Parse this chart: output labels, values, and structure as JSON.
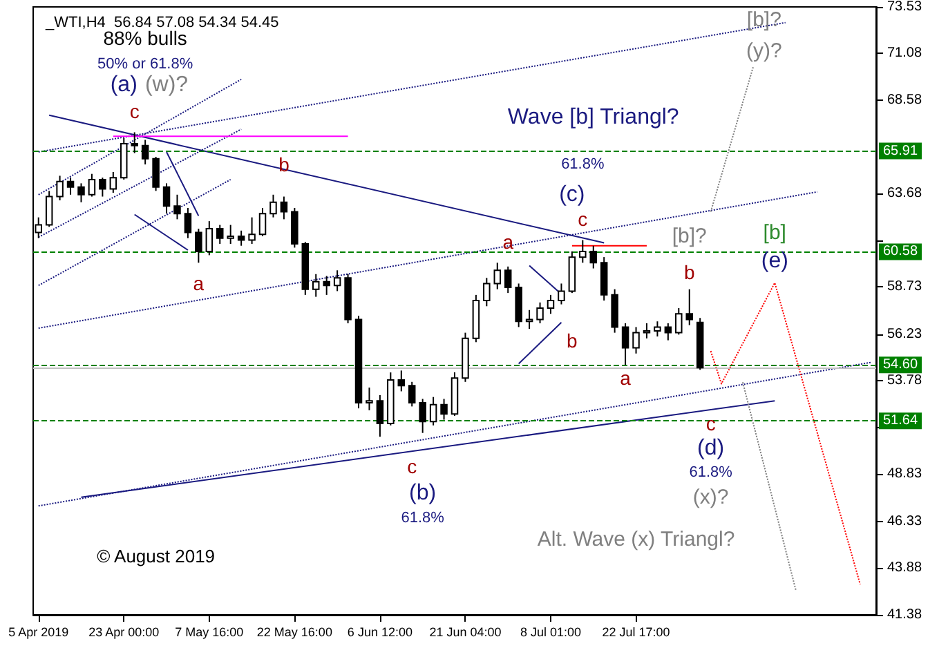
{
  "chart_data": {
    "type": "candlestick",
    "title": "_WTI,H4  56.84 57.08 54.34 54.45",
    "color": "#000000",
    "marker": "none",
    "categories": [
      "5 Apr 2019",
      null,
      null,
      null,
      null,
      null,
      null,
      null,
      "23 Apr 00:00",
      null,
      null,
      null,
      null,
      null,
      null,
      null,
      "7 May 16:00",
      null,
      null,
      null,
      null,
      null,
      null,
      null,
      "22 May 16:00",
      null,
      null,
      null,
      null,
      null,
      null,
      null,
      "6 Jun 12:00",
      null,
      null,
      null,
      null,
      null,
      null,
      null,
      "21 Jun 04:00",
      null,
      null,
      null,
      null,
      null,
      null,
      null,
      "8 Jul 01:00",
      null,
      null,
      null,
      null,
      null,
      null,
      null,
      "22 Jul 17:00",
      null,
      null,
      null,
      null,
      null,
      null,
      null,
      null,
      null,
      null,
      null,
      null,
      null,
      null,
      null,
      null,
      null,
      null,
      null,
      null,
      null,
      null
    ],
    "ylim": [
      41.38,
      73.53
    ],
    "yticks": [
      41.38,
      43.88,
      46.33,
      48.83,
      {
        "value": 51.28,
        "label": null
      },
      53.78,
      56.23,
      58.73,
      {
        "value": 61.18,
        "label": null
      },
      63.68,
      68.58,
      71.08,
      73.53
    ],
    "ohlc": [
      [
        61.6,
        62.4,
        61.3,
        62.0
      ],
      [
        62.0,
        63.8,
        61.9,
        63.5
      ],
      [
        63.5,
        64.6,
        63.3,
        64.3
      ],
      [
        64.3,
        64.5,
        63.6,
        64.0
      ],
      [
        64.0,
        64.2,
        63.2,
        63.6
      ],
      [
        63.6,
        64.7,
        63.5,
        64.4
      ],
      [
        64.4,
        64.5,
        63.5,
        63.9
      ],
      [
        63.9,
        64.8,
        63.7,
        64.5
      ],
      [
        64.5,
        66.6,
        64.4,
        66.3
      ],
      [
        66.3,
        66.9,
        65.8,
        66.2
      ],
      [
        66.2,
        66.5,
        65.2,
        65.5
      ],
      [
        65.5,
        65.6,
        63.8,
        64.0
      ],
      [
        64.0,
        64.2,
        62.6,
        63.0
      ],
      [
        63.0,
        63.6,
        62.3,
        62.6
      ],
      [
        62.6,
        62.9,
        61.3,
        61.6
      ],
      [
        61.6,
        61.8,
        60.0,
        60.6
      ],
      [
        60.6,
        62.2,
        60.4,
        61.8
      ],
      [
        61.8,
        62.0,
        61.0,
        61.3
      ],
      [
        61.3,
        62.0,
        61.0,
        61.4
      ],
      [
        61.4,
        61.7,
        60.9,
        61.2
      ],
      [
        61.2,
        62.4,
        61.0,
        61.5
      ],
      [
        61.5,
        62.9,
        61.4,
        62.6
      ],
      [
        62.6,
        63.6,
        62.4,
        63.2
      ],
      [
        63.2,
        63.5,
        62.3,
        62.7
      ],
      [
        62.7,
        62.9,
        60.8,
        61.0
      ],
      [
        61.0,
        61.1,
        58.3,
        58.6
      ],
      [
        58.6,
        59.4,
        58.2,
        59.0
      ],
      [
        59.0,
        59.3,
        58.3,
        58.8
      ],
      [
        58.8,
        59.6,
        58.5,
        59.2
      ],
      [
        59.2,
        59.4,
        56.8,
        57.0
      ],
      [
        57.0,
        57.2,
        52.3,
        52.6
      ],
      [
        52.6,
        53.4,
        52.2,
        52.7
      ],
      [
        52.7,
        53.0,
        50.8,
        51.5
      ],
      [
        51.5,
        54.2,
        51.4,
        53.8
      ],
      [
        53.8,
        54.3,
        53.2,
        53.5
      ],
      [
        53.5,
        53.7,
        52.4,
        52.6
      ],
      [
        52.6,
        52.8,
        51.0,
        51.6
      ],
      [
        51.6,
        52.9,
        51.4,
        52.5
      ],
      [
        52.5,
        52.8,
        51.7,
        52.0
      ],
      [
        52.0,
        54.2,
        51.9,
        53.9
      ],
      [
        53.9,
        56.3,
        53.7,
        56.0
      ],
      [
        56.0,
        58.3,
        55.8,
        58.0
      ],
      [
        58.0,
        59.2,
        57.7,
        58.9
      ],
      [
        58.9,
        60.0,
        58.6,
        59.6
      ],
      [
        59.6,
        59.8,
        58.4,
        58.7
      ],
      [
        58.7,
        58.9,
        56.6,
        56.9
      ],
      [
        56.9,
        57.5,
        56.5,
        57.0
      ],
      [
        57.0,
        57.9,
        56.8,
        57.6
      ],
      [
        57.6,
        58.3,
        57.3,
        58.0
      ],
      [
        58.0,
        58.9,
        57.8,
        58.5
      ],
      [
        58.5,
        60.6,
        58.4,
        60.3
      ],
      [
        60.3,
        61.2,
        60.0,
        60.6
      ],
      [
        60.6,
        60.9,
        59.7,
        60.0
      ],
      [
        60.0,
        60.3,
        58.0,
        58.3
      ],
      [
        58.3,
        58.6,
        56.3,
        56.6
      ],
      [
        56.6,
        56.8,
        54.6,
        55.5
      ],
      [
        55.5,
        56.6,
        55.2,
        56.3
      ],
      [
        56.3,
        56.8,
        56.0,
        56.4
      ],
      [
        56.4,
        56.9,
        56.1,
        56.6
      ],
      [
        56.6,
        56.8,
        55.9,
        56.3
      ],
      [
        56.3,
        57.6,
        56.2,
        57.3
      ],
      [
        57.3,
        58.6,
        56.7,
        57.0
      ],
      [
        56.84,
        57.08,
        54.34,
        54.45
      ],
      null,
      null,
      null,
      null,
      null,
      null,
      null,
      null,
      null,
      null,
      null,
      null,
      null,
      null,
      null,
      null
    ],
    "series": [
      {
        "type": "line",
        "color": "#1a1a80",
        "line_style": "solid",
        "values": [
          null,
          67.8,
          null,
          null,
          null,
          null,
          null,
          null,
          null,
          null,
          null,
          null,
          null,
          null,
          null,
          null,
          null,
          null,
          null,
          null,
          null,
          null,
          null,
          null,
          null,
          null,
          null,
          null,
          null,
          null,
          null,
          null,
          null,
          null,
          null,
          null,
          null,
          null,
          null,
          null,
          null,
          null,
          null,
          null,
          null,
          null,
          null,
          null,
          null,
          null,
          null,
          null,
          null,
          61.05,
          null,
          null,
          null,
          null,
          null,
          null,
          null,
          null,
          null,
          null,
          null,
          null,
          null,
          null,
          null,
          null,
          null,
          null,
          null,
          null,
          null,
          null,
          null,
          null,
          null
        ]
      },
      {
        "type": "line",
        "color": "#1a1a80",
        "line_style": "solid",
        "values": [
          null,
          null,
          null,
          null,
          47.6,
          null,
          null,
          null,
          null,
          null,
          null,
          null,
          null,
          null,
          null,
          null,
          null,
          null,
          null,
          null,
          null,
          null,
          null,
          null,
          null,
          null,
          null,
          null,
          null,
          null,
          null,
          null,
          null,
          null,
          null,
          null,
          null,
          null,
          null,
          null,
          null,
          null,
          null,
          null,
          null,
          null,
          null,
          null,
          null,
          null,
          null,
          null,
          null,
          null,
          null,
          null,
          null,
          null,
          null,
          null,
          null,
          null,
          null,
          null,
          null,
          null,
          null,
          null,
          null,
          52.7,
          null,
          null,
          null,
          null,
          null,
          null,
          null,
          null,
          null
        ]
      },
      {
        "type": "line",
        "color": "#1a1a80",
        "line_style": "dotted",
        "values": [
          47.14,
          null,
          null,
          null,
          null,
          null,
          null,
          null,
          null,
          null,
          null,
          null,
          null,
          null,
          null,
          null,
          null,
          null,
          null,
          null,
          null,
          null,
          null,
          null,
          null,
          null,
          null,
          null,
          null,
          null,
          null,
          null,
          null,
          null,
          null,
          null,
          null,
          null,
          null,
          null,
          null,
          null,
          null,
          null,
          null,
          null,
          null,
          null,
          null,
          null,
          null,
          null,
          null,
          null,
          null,
          null,
          null,
          null,
          null,
          null,
          null,
          null,
          null,
          null,
          null,
          null,
          null,
          null,
          null,
          null,
          null,
          null,
          null,
          null,
          null,
          null,
          null,
          null,
          54.73
        ]
      },
      {
        "type": "line",
        "color": "#1a1a80",
        "line_style": "dotted",
        "values": [
          56.54,
          null,
          null,
          null,
          null,
          null,
          null,
          null,
          null,
          null,
          null,
          null,
          null,
          null,
          null,
          null,
          null,
          null,
          null,
          null,
          null,
          null,
          null,
          null,
          null,
          null,
          null,
          null,
          null,
          null,
          null,
          null,
          null,
          null,
          null,
          null,
          null,
          null,
          null,
          null,
          null,
          null,
          null,
          null,
          null,
          null,
          null,
          null,
          null,
          null,
          null,
          null,
          null,
          null,
          null,
          null,
          null,
          null,
          null,
          null,
          null,
          null,
          null,
          null,
          null,
          null,
          null,
          null,
          null,
          null,
          null,
          null,
          null,
          63.75,
          null,
          null,
          null,
          null,
          null
        ]
      },
      {
        "type": "line",
        "color": "#1a1a80",
        "line_style": "dotted",
        "values": [
          65.86,
          null,
          null,
          null,
          null,
          null,
          null,
          null,
          null,
          null,
          null,
          null,
          null,
          null,
          null,
          null,
          null,
          null,
          null,
          null,
          null,
          null,
          null,
          null,
          null,
          null,
          null,
          null,
          null,
          null,
          null,
          null,
          null,
          null,
          null,
          null,
          null,
          null,
          null,
          null,
          null,
          null,
          null,
          null,
          null,
          null,
          null,
          null,
          null,
          null,
          null,
          null,
          null,
          null,
          null,
          null,
          null,
          null,
          null,
          null,
          null,
          null,
          null,
          null,
          null,
          null,
          null,
          null,
          null,
          null,
          72.7,
          null,
          null,
          null,
          null,
          null,
          null,
          null,
          null
        ]
      },
      {
        "type": "line",
        "color": "#1a1a80",
        "line_style": "dotted",
        "values": [
          63.6,
          null,
          null,
          null,
          null,
          null,
          null,
          null,
          null,
          null,
          null,
          null,
          null,
          null,
          null,
          null,
          null,
          null,
          null,
          69.7,
          null,
          null,
          null,
          null,
          null,
          null,
          null,
          null,
          null,
          null,
          null,
          null,
          null,
          null,
          null,
          null,
          null,
          null,
          null,
          null,
          null,
          null,
          null,
          null,
          null,
          null,
          null,
          null,
          null,
          null,
          null,
          null,
          null,
          null,
          null,
          null,
          null,
          null,
          null,
          null,
          null,
          null,
          null,
          null,
          null,
          null,
          null,
          null,
          null,
          null,
          null,
          null,
          null,
          null,
          null,
          null,
          null,
          null,
          null
        ]
      },
      {
        "type": "line",
        "color": "#1a1a80",
        "line_style": "dotted",
        "values": [
          61.35,
          null,
          null,
          null,
          null,
          null,
          null,
          null,
          null,
          null,
          null,
          null,
          null,
          null,
          null,
          null,
          null,
          null,
          null,
          67.06,
          null,
          null,
          null,
          null,
          null,
          null,
          null,
          null,
          null,
          null,
          null,
          null,
          null,
          null,
          null,
          null,
          null,
          null,
          null,
          null,
          null,
          null,
          null,
          null,
          null,
          null,
          null,
          null,
          null,
          null,
          null,
          null,
          null,
          null,
          null,
          null,
          null,
          null,
          null,
          null,
          null,
          null,
          null,
          null,
          null,
          null,
          null,
          null,
          null,
          null,
          null,
          null,
          null,
          null,
          null,
          null,
          null,
          null,
          null
        ]
      },
      {
        "type": "line",
        "color": "#1a1a80",
        "line_style": "dotted",
        "values": [
          58.8,
          null,
          null,
          null,
          null,
          null,
          null,
          null,
          null,
          null,
          null,
          null,
          null,
          null,
          null,
          null,
          null,
          null,
          64.4,
          null,
          null,
          null,
          null,
          null,
          null,
          null,
          null,
          null,
          null,
          null,
          null,
          null,
          null,
          null,
          null,
          null,
          null,
          null,
          null,
          null,
          null,
          null,
          null,
          null,
          null,
          null,
          null,
          null,
          null,
          null,
          null,
          null,
          null,
          null,
          null,
          null,
          null,
          null,
          null,
          null,
          null,
          null,
          null,
          null,
          null,
          null,
          null,
          null,
          null,
          null,
          null,
          null,
          null,
          null,
          null,
          null,
          null,
          null,
          null
        ]
      },
      {
        "type": "line",
        "color": "#1a1a80",
        "line_style": "solid",
        "values": [
          null,
          null,
          null,
          null,
          null,
          null,
          null,
          null,
          null,
          null,
          null,
          null,
          65.86,
          null,
          null,
          62.48,
          null,
          null,
          null,
          null,
          null,
          null,
          null,
          null,
          null,
          null,
          null,
          null,
          null,
          null,
          null,
          null,
          null,
          null,
          null,
          null,
          null,
          null,
          null,
          null,
          null,
          null,
          null,
          null,
          null,
          null,
          null,
          null,
          null,
          null,
          null,
          null,
          null,
          null,
          null,
          null,
          null,
          null,
          null,
          null,
          null,
          null,
          null,
          null,
          null,
          null,
          null,
          null,
          null,
          null,
          null,
          null,
          null,
          null,
          null,
          null,
          null,
          null,
          null
        ]
      },
      {
        "type": "line",
        "color": "#1a1a80",
        "line_style": "solid",
        "values": [
          null,
          null,
          null,
          null,
          null,
          null,
          null,
          null,
          null,
          62.55,
          null,
          null,
          null,
          null,
          60.67,
          null,
          null,
          null,
          null,
          null,
          null,
          null,
          null,
          null,
          null,
          null,
          null,
          null,
          null,
          null,
          null,
          null,
          null,
          null,
          null,
          null,
          null,
          null,
          null,
          null,
          null,
          null,
          null,
          null,
          null,
          null,
          null,
          null,
          null,
          null,
          null,
          null,
          null,
          null,
          null,
          null,
          null,
          null,
          null,
          null,
          null,
          null,
          null,
          null,
          null,
          null,
          null,
          null,
          null,
          null,
          null,
          null,
          null,
          null,
          null,
          null,
          null,
          null,
          null
        ]
      },
      {
        "type": "line",
        "color": "#1a1a80",
        "line_style": "solid",
        "values": [
          null,
          null,
          null,
          null,
          null,
          null,
          null,
          null,
          null,
          null,
          null,
          null,
          null,
          null,
          null,
          null,
          null,
          null,
          null,
          null,
          null,
          null,
          null,
          null,
          null,
          null,
          null,
          null,
          null,
          null,
          null,
          null,
          null,
          null,
          null,
          null,
          null,
          null,
          null,
          null,
          null,
          null,
          null,
          null,
          null,
          null,
          59.85,
          null,
          null,
          58.34,
          null,
          null,
          null,
          null,
          null,
          null,
          null,
          null,
          null,
          null,
          null,
          null,
          null,
          null,
          null,
          null,
          null,
          null,
          null,
          null,
          null,
          null,
          null,
          null,
          null,
          null,
          null,
          null,
          null
        ]
      },
      {
        "type": "line",
        "color": "#1a1a80",
        "line_style": "solid",
        "values": [
          null,
          null,
          null,
          null,
          null,
          null,
          null,
          null,
          null,
          null,
          null,
          null,
          null,
          null,
          null,
          null,
          null,
          null,
          null,
          null,
          null,
          null,
          null,
          null,
          null,
          null,
          null,
          null,
          null,
          null,
          null,
          null,
          null,
          null,
          null,
          null,
          null,
          null,
          null,
          null,
          null,
          null,
          null,
          null,
          null,
          54.66,
          null,
          null,
          null,
          56.84,
          null,
          null,
          null,
          null,
          null,
          null,
          null,
          null,
          null,
          null,
          null,
          null,
          null,
          null,
          null,
          null,
          null,
          null,
          null,
          null,
          null,
          null,
          null,
          null,
          null,
          null,
          null,
          null,
          null
        ]
      },
      {
        "type": "line",
        "color": "#ff00ff",
        "line_style": "solid",
        "values": [
          null,
          null,
          null,
          null,
          null,
          null,
          null,
          66.69,
          null,
          null,
          null,
          null,
          null,
          null,
          null,
          null,
          null,
          null,
          null,
          null,
          null,
          null,
          null,
          null,
          null,
          null,
          null,
          null,
          null,
          66.69,
          null,
          null,
          null,
          null,
          null,
          null,
          null,
          null,
          null,
          null,
          null,
          null,
          null,
          null,
          null,
          null,
          null,
          null,
          null,
          null,
          null,
          null,
          null,
          null,
          null,
          null,
          null,
          null,
          null,
          null,
          null,
          null,
          null,
          null,
          null,
          null,
          null,
          null,
          null,
          null,
          null,
          null,
          null,
          null,
          null,
          null,
          null,
          null,
          null
        ]
      },
      {
        "type": "line",
        "color": "#ff0000",
        "line_style": "solid",
        "values": [
          null,
          null,
          null,
          null,
          null,
          null,
          null,
          null,
          null,
          null,
          null,
          null,
          null,
          null,
          null,
          null,
          null,
          null,
          null,
          null,
          null,
          null,
          null,
          null,
          null,
          null,
          null,
          null,
          null,
          null,
          null,
          null,
          null,
          null,
          null,
          null,
          null,
          null,
          null,
          null,
          null,
          null,
          null,
          null,
          null,
          null,
          null,
          null,
          null,
          null,
          60.9,
          null,
          null,
          null,
          null,
          null,
          null,
          60.9,
          null,
          null,
          null,
          null,
          null,
          null,
          null,
          null,
          null,
          null,
          null,
          null,
          null,
          null,
          null,
          null,
          null,
          null,
          null,
          null,
          null
        ]
      },
      {
        "type": "line",
        "color": "#ff0000",
        "line_style": "dotted",
        "values": [
          null,
          null,
          null,
          null,
          null,
          null,
          null,
          null,
          null,
          null,
          null,
          null,
          null,
          null,
          null,
          null,
          null,
          null,
          null,
          null,
          null,
          null,
          null,
          null,
          null,
          null,
          null,
          null,
          null,
          null,
          null,
          null,
          null,
          null,
          null,
          null,
          null,
          null,
          null,
          null,
          null,
          null,
          null,
          null,
          null,
          null,
          null,
          null,
          null,
          null,
          null,
          null,
          null,
          null,
          null,
          null,
          null,
          null,
          null,
          null,
          null,
          null,
          null,
          55.33,
          53.6,
          54.66,
          null,
          null,
          null,
          58.94,
          null,
          null,
          null,
          null,
          null,
          null,
          null,
          43.0,
          null
        ]
      },
      {
        "type": "line",
        "color": "#808080",
        "line_style": "dotted",
        "values": [
          null,
          null,
          null,
          null,
          null,
          null,
          null,
          null,
          null,
          null,
          null,
          null,
          null,
          null,
          null,
          null,
          null,
          null,
          null,
          null,
          null,
          null,
          null,
          null,
          null,
          null,
          null,
          null,
          null,
          null,
          null,
          null,
          null,
          null,
          null,
          null,
          null,
          null,
          null,
          null,
          null,
          null,
          null,
          null,
          null,
          null,
          null,
          null,
          null,
          null,
          null,
          null,
          null,
          null,
          null,
          null,
          null,
          null,
          null,
          null,
          null,
          null,
          null,
          62.7,
          null,
          null,
          null,
          70.4,
          null,
          null,
          null,
          null,
          null,
          null,
          null,
          null,
          null,
          null,
          null
        ]
      },
      {
        "type": "line",
        "color": "#808080",
        "line_style": "dotted",
        "values": [
          null,
          null,
          null,
          null,
          null,
          null,
          null,
          null,
          null,
          null,
          null,
          null,
          null,
          null,
          null,
          null,
          null,
          null,
          null,
          null,
          null,
          null,
          null,
          null,
          null,
          null,
          null,
          null,
          null,
          null,
          null,
          null,
          null,
          null,
          null,
          null,
          null,
          null,
          null,
          null,
          null,
          null,
          null,
          null,
          null,
          null,
          null,
          null,
          null,
          null,
          null,
          null,
          null,
          null,
          null,
          null,
          null,
          null,
          null,
          null,
          null,
          null,
          null,
          null,
          null,
          null,
          53.68,
          null,
          null,
          null,
          null,
          42.63,
          null,
          null,
          null,
          null,
          null,
          null,
          null
        ]
      }
    ],
    "ref_lines": [
      {
        "axis": "y",
        "value": 65.91,
        "label": "65.91",
        "color": "#008000",
        "line_style": "dashed"
      },
      {
        "axis": "y",
        "value": 60.58,
        "label": "60.58",
        "color": "#008000",
        "line_style": "dashed"
      },
      {
        "axis": "y",
        "value": 54.6,
        "label": "54.60",
        "color": "#008000",
        "line_style": "dashed"
      },
      {
        "axis": "y",
        "value": 54.45,
        "color": "#c0c0c0",
        "line_style": "solid"
      },
      {
        "axis": "y",
        "value": 51.64,
        "label": "51.64",
        "color": "#008000",
        "line_style": "dashed"
      }
    ],
    "annotations": [
      "88% bulls",
      "50% or 61.8%",
      "(a)",
      "(w)?",
      "c",
      "b",
      "a",
      "Wave [b] Triangl?",
      "61.8%",
      "(c)",
      "c",
      "a",
      "b",
      "a",
      "[b]?",
      "b",
      "[b]",
      "(e)",
      "[b]?",
      "(y)?",
      "c",
      "(b)",
      "61.8%",
      "c",
      "(d)",
      "61.8%",
      "(x)?",
      "Alt. Wave (x) Triangl?",
      "© August 2019"
    ]
  }
}
